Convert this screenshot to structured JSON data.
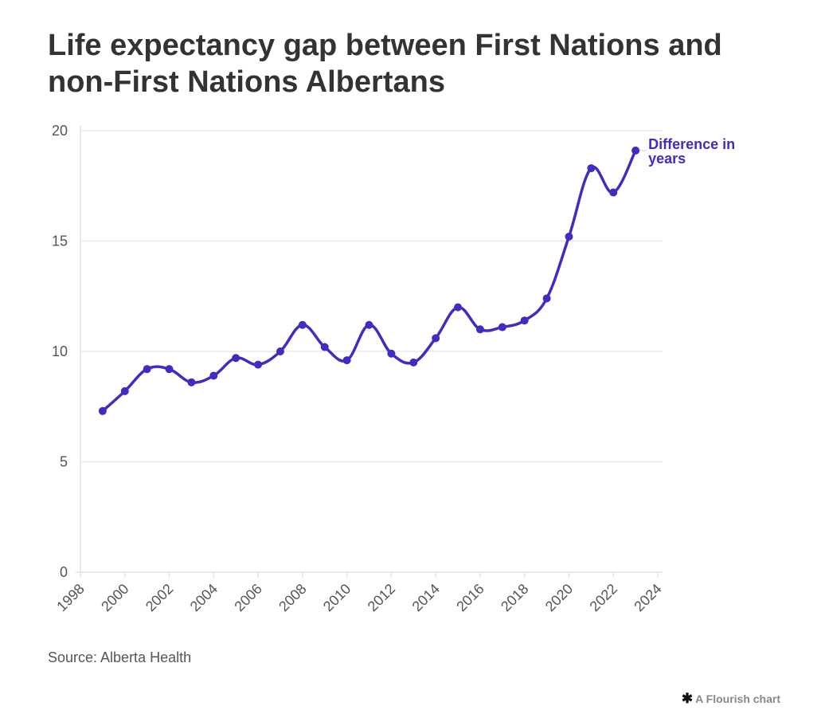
{
  "chart_data": {
    "type": "line",
    "title": "Life expectancy gap between First Nations and non-First Nations Albertans",
    "xlabel": "",
    "ylabel": "",
    "xlim": [
      1998,
      2024
    ],
    "ylim": [
      0,
      20
    ],
    "x_ticks": [
      "1998",
      "2000",
      "2002",
      "2004",
      "2006",
      "2008",
      "2010",
      "2012",
      "2014",
      "2016",
      "2018",
      "2020",
      "2022",
      "2024"
    ],
    "y_ticks": [
      "0",
      "5",
      "10",
      "15",
      "20"
    ],
    "grid": "horizontal",
    "legend": "direct label at end of line (top-right)",
    "series": [
      {
        "name": "Difference in years",
        "color": "#3f2cc1",
        "x": [
          1999,
          2000,
          2001,
          2002,
          2003,
          2004,
          2005,
          2006,
          2007,
          2008,
          2009,
          2010,
          2011,
          2012,
          2013,
          2014,
          2015,
          2016,
          2017,
          2018,
          2019,
          2020,
          2021,
          2022,
          2023
        ],
        "values": [
          7.3,
          8.2,
          9.2,
          9.2,
          8.6,
          8.9,
          9.7,
          9.4,
          10.0,
          11.2,
          10.2,
          9.6,
          11.2,
          9.9,
          9.5,
          10.6,
          12.0,
          11.0,
          11.1,
          11.4,
          12.4,
          15.2,
          18.3,
          17.2,
          19.1
        ]
      }
    ]
  },
  "header": {
    "title": "Life expectancy gap between First Nations and non-First Nations Albertans"
  },
  "series_label_line1": "Difference in",
  "series_label_line2": "years",
  "footer": {
    "source": "Source: Alberta Health",
    "credit": "A Flourish chart",
    "credit_icon": "flourish-asterisk-icon"
  }
}
